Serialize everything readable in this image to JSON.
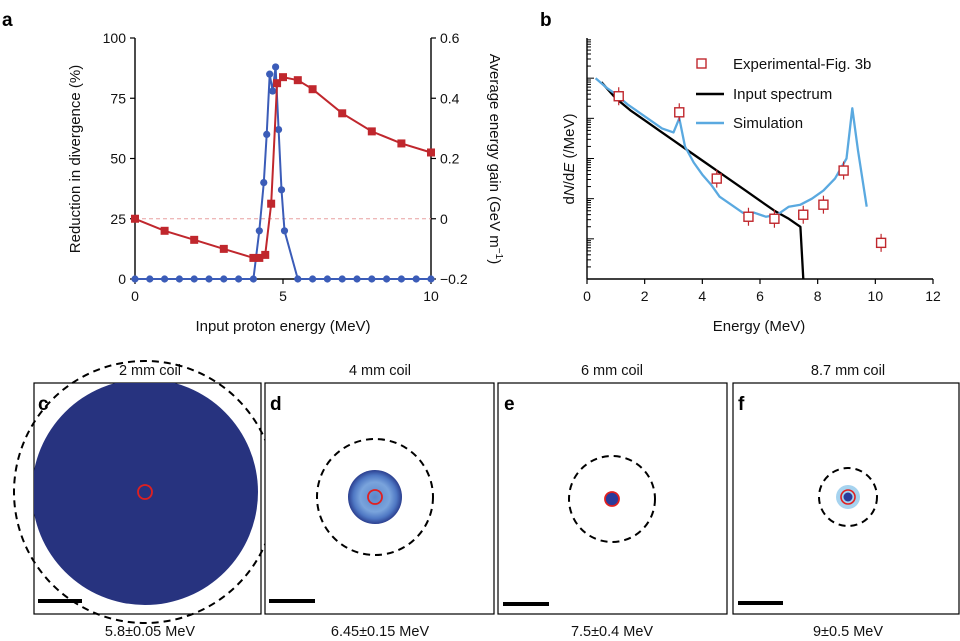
{
  "chart_data": [
    {
      "panel": "a",
      "type": "line",
      "xlabel": "Input proton energy (MeV)",
      "ylabel": "Reduction in divergence (%)",
      "ylabel_right_prefix": "Average energy gain (GeV m",
      "ylabel_right_sup": "−1",
      "ylabel_right_suffix": ")",
      "xlim": [
        0,
        10
      ],
      "ylim": [
        0,
        100
      ],
      "ylim_right": [
        -0.2,
        0.6
      ],
      "xticks": [
        "0",
        "5",
        "10"
      ],
      "yticks": [
        "0",
        "25",
        "50",
        "75",
        "100"
      ],
      "yticks_right": [
        "−0.2",
        "0",
        "0.2",
        "0.4",
        "0.6"
      ],
      "zero_line_right": 0,
      "series": [
        {
          "axis": "left",
          "color": "#3b5cb8",
          "marker": "circle",
          "x": [
            0,
            0.5,
            1,
            1.5,
            2,
            2.5,
            3,
            3.5,
            4,
            4.2,
            4.35,
            4.45,
            4.55,
            4.65,
            4.75,
            4.85,
            4.95,
            5.05,
            5.5,
            6,
            6.5,
            7,
            7.5,
            8,
            8.5,
            9,
            9.5,
            10
          ],
          "y": [
            0,
            0,
            0,
            0,
            0,
            0,
            0,
            0,
            0,
            20,
            40,
            60,
            85,
            78,
            88,
            62,
            37,
            20,
            0,
            0,
            0,
            0,
            0,
            0,
            0,
            0,
            0,
            0
          ]
        },
        {
          "axis": "right",
          "color": "#c0272d",
          "marker": "square",
          "x": [
            0,
            1,
            2,
            3,
            4,
            4.2,
            4.4,
            4.6,
            4.8,
            5,
            5.5,
            6,
            7,
            8,
            9,
            10
          ],
          "y": [
            0.0,
            -0.04,
            -0.07,
            -0.1,
            -0.13,
            -0.13,
            -0.12,
            0.05,
            0.45,
            0.47,
            0.46,
            0.43,
            0.35,
            0.29,
            0.25,
            0.22
          ]
        }
      ]
    },
    {
      "panel": "b",
      "type": "line",
      "xlabel": "Energy (MeV)",
      "ylabel_prefix": "d",
      "ylabel_N": "N",
      "ylabel_mid": "/d",
      "ylabel_E": "E",
      "ylabel_suffix": " (/MeV)",
      "xlim": [
        0,
        12
      ],
      "yscale": "log",
      "ylim_decades": [
        0,
        6
      ],
      "xticks": [
        "0",
        "2",
        "4",
        "6",
        "8",
        "10",
        "12"
      ],
      "legend": [
        "Experimental-Fig. 3b",
        "Input spectrum",
        "Simulation"
      ],
      "legend_position": "top-right",
      "series": [
        {
          "name": "Experimental-Fig. 3b",
          "color": "#c0272d",
          "marker": "open-square",
          "x": [
            1.1,
            3.2,
            4.5,
            5.6,
            6.5,
            7.5,
            8.2,
            8.9,
            10.2
          ],
          "y_decades": [
            4.55,
            4.15,
            2.5,
            1.55,
            1.5,
            1.6,
            1.85,
            2.7,
            0.9
          ]
        },
        {
          "name": "Input spectrum",
          "color": "#000000",
          "x": [
            0.5,
            1,
            1.5,
            2,
            2.5,
            3,
            3.5,
            4,
            4.5,
            5,
            5.5,
            6,
            6.5,
            7,
            7.3,
            7.4,
            7.5
          ],
          "y_decades": [
            4.9,
            4.5,
            4.2,
            3.95,
            3.7,
            3.45,
            3.2,
            2.95,
            2.7,
            2.45,
            2.2,
            1.95,
            1.7,
            1.5,
            1.35,
            1.3,
            0.0
          ]
        },
        {
          "name": "Simulation",
          "color": "#5aa9e0",
          "x": [
            0.3,
            0.7,
            1,
            1.4,
            1.8,
            2.2,
            2.6,
            3.0,
            3.2,
            3.4,
            3.7,
            4.0,
            4.3,
            4.6,
            5.0,
            5.4,
            5.8,
            6.2,
            6.6,
            7.0,
            7.4,
            7.8,
            8.2,
            8.6,
            9.0,
            9.2,
            9.4,
            9.7
          ],
          "y_decades": [
            5.0,
            4.75,
            4.6,
            4.35,
            4.15,
            3.95,
            3.75,
            3.65,
            4.0,
            3.3,
            2.9,
            2.6,
            2.35,
            2.05,
            1.85,
            1.65,
            1.65,
            1.55,
            1.6,
            1.8,
            1.85,
            2.0,
            2.2,
            2.5,
            3.0,
            4.25,
            3.2,
            1.8
          ]
        }
      ]
    }
  ],
  "images": {
    "items": [
      {
        "panel": "c",
        "title": "2 mm coil",
        "caption": "5.8±0.05 MeV"
      },
      {
        "panel": "d",
        "title": "4 mm coil",
        "caption": "6.45±0.15 MeV"
      },
      {
        "panel": "e",
        "title": "6 mm coil",
        "caption": "7.5±0.4 MeV"
      },
      {
        "panel": "f",
        "title": "8.7 mm coil",
        "caption": "9±0.5 MeV"
      }
    ]
  }
}
